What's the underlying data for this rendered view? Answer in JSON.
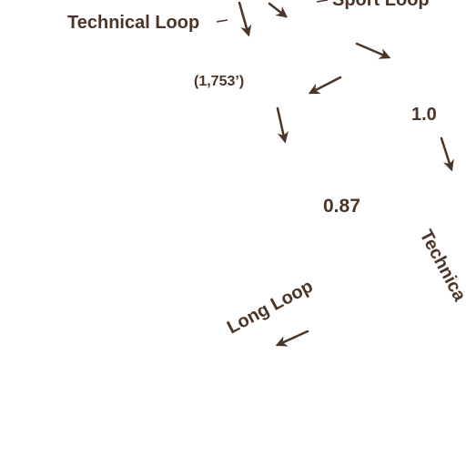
{
  "map": {
    "accent_color": "#4a3629",
    "labels": {
      "technical_loop_left": "Technical Loop",
      "sport_loop": "Sport Loop",
      "elevation": "(1,753’)",
      "distance_1": "1.0",
      "distance_2": "0.87",
      "technical_loop_right": "Technica",
      "long_loop": "Long Loop"
    },
    "direction_arrows": [
      {
        "id": "arrow-1"
      },
      {
        "id": "arrow-2"
      },
      {
        "id": "arrow-3"
      },
      {
        "id": "arrow-4"
      },
      {
        "id": "arrow-5"
      },
      {
        "id": "arrow-6"
      },
      {
        "id": "arrow-7"
      }
    ]
  }
}
